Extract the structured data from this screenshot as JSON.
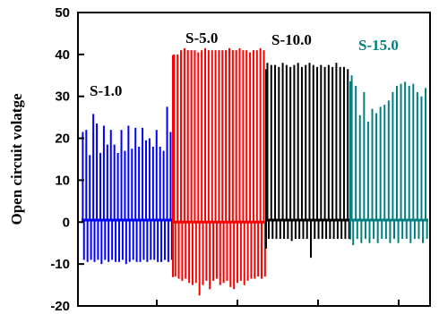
{
  "chart_data": {
    "type": "line",
    "ylabel": "Open circuit volatge",
    "xlabel": "",
    "ylim": [
      -20,
      50
    ],
    "yticks": [
      -20,
      -10,
      0,
      10,
      20,
      30,
      40,
      50
    ],
    "grid": false,
    "series": [
      {
        "name": "S-1.0",
        "color": "#0000ff",
        "baseline": 0.5,
        "peaks": [
          21.5,
          22,
          16,
          25.8,
          23.5,
          16.5,
          23,
          18.5,
          22,
          18.5,
          16.5,
          22,
          17,
          23,
          17.5,
          22.5,
          18,
          22.5,
          19.5,
          20,
          18,
          22,
          18,
          17,
          27.5,
          21.5
        ],
        "troughs": [
          -9,
          -9.5,
          -9,
          -9.5,
          -9,
          -10,
          -9,
          -9.5,
          -9,
          -9.5,
          -9.5,
          -9,
          -10,
          -9.5,
          -9,
          -9.5,
          -9.5,
          -9,
          -9.5,
          -9,
          -9,
          -9.5,
          -9.5,
          -9,
          -9.5,
          -9
        ]
      },
      {
        "name": "S-5.0",
        "color": "#ff0000",
        "baseline": 0,
        "peaks": [
          40,
          40,
          41,
          41.5,
          41,
          41,
          41,
          40.5,
          41,
          41.5,
          41,
          41,
          41,
          41,
          41,
          41,
          41.5,
          41,
          41,
          41.5,
          41,
          41,
          40.5,
          41,
          41,
          41.5,
          41
        ],
        "troughs": [
          -13,
          -13.5,
          -14,
          -13.5,
          -14.5,
          -15,
          -14.5,
          -17.5,
          -15,
          -14,
          -16,
          -14,
          -13.5,
          -15,
          -14.5,
          -14,
          -15.5,
          -16,
          -14.5,
          -14,
          -15,
          -14,
          -13.5,
          -13.5,
          -13,
          -13.5,
          -13
        ]
      },
      {
        "name": "S-10.0",
        "color": "#000000",
        "baseline": 0.5,
        "peaks": [
          38,
          37.5,
          37.5,
          37,
          38,
          37.5,
          37,
          37.5,
          38,
          37,
          37.5,
          38,
          37.5,
          37,
          37.5,
          37,
          37.5,
          37,
          38,
          37,
          37,
          36.5
        ],
        "troughs": [
          -4,
          -4,
          -4,
          -4,
          -4,
          -4,
          -4.5,
          -4,
          -4,
          -4,
          -4,
          -8.5,
          -4,
          -4,
          -4,
          -4,
          -4,
          -4,
          -4,
          -4,
          -4,
          -4
        ]
      },
      {
        "name": "S-15.0",
        "color": "#008080",
        "baseline": 0.5,
        "peaks": [
          35,
          32.5,
          25.5,
          31,
          24,
          27,
          26,
          27.5,
          28,
          29,
          31,
          32.5,
          33,
          33.5,
          32.5,
          33,
          31,
          30,
          32
        ],
        "troughs": [
          -5.5,
          -4,
          -5,
          -4,
          -5,
          -4,
          -5,
          -4,
          -4,
          -5,
          -4,
          -5,
          -4,
          -4,
          -5,
          -4,
          -4,
          -5,
          -4
        ]
      }
    ]
  }
}
